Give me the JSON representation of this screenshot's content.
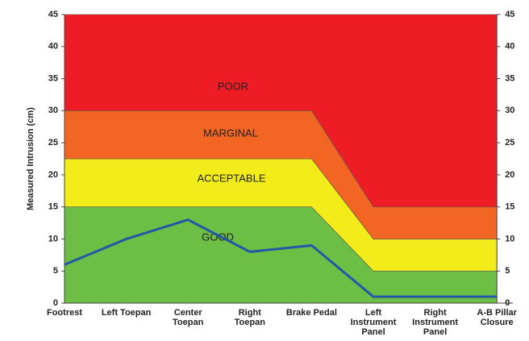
{
  "chart_data": {
    "type": "area",
    "y_label": "Measured Intrusion (cm)",
    "categories": [
      "Footrest",
      "Left Toepan",
      "Center\nToepan",
      "Right\nToepan",
      "Brake Pedal",
      "Left\nInstrument\nPanel",
      "Right\nInstrument\nPanel",
      "A-B Pillar\nClosure"
    ],
    "series": [
      {
        "name": "GOOD",
        "color": "#6cbe45",
        "stack": true,
        "values": [
          15,
          15,
          15,
          15,
          15,
          5,
          5,
          5
        ]
      },
      {
        "name": "ACCEPTABLE",
        "color": "#f2ec1a",
        "stack": true,
        "values": [
          7.5,
          7.5,
          7.5,
          7.5,
          7.5,
          5,
          5,
          5
        ]
      },
      {
        "name": "MARGINAL",
        "color": "#f26522",
        "stack": true,
        "values": [
          7.5,
          7.5,
          7.5,
          7.5,
          7.5,
          5,
          5,
          5
        ]
      },
      {
        "name": "POOR",
        "color": "#ee1c25",
        "stack": true,
        "values": [
          15,
          15,
          15,
          15,
          15,
          30,
          30,
          30
        ]
      },
      {
        "type": "line",
        "color": "#2258a8",
        "values": [
          6,
          10,
          13,
          8,
          9,
          1,
          1,
          1
        ]
      }
    ],
    "ylim": [
      0,
      45
    ],
    "yticks": [
      0,
      5,
      10,
      15,
      20,
      25,
      30,
      35,
      40,
      45
    ],
    "y2lim": [
      0,
      45
    ],
    "y2ticks": [
      0,
      5,
      10,
      15,
      20,
      25,
      30,
      35,
      40,
      45
    ],
    "grid": false
  }
}
